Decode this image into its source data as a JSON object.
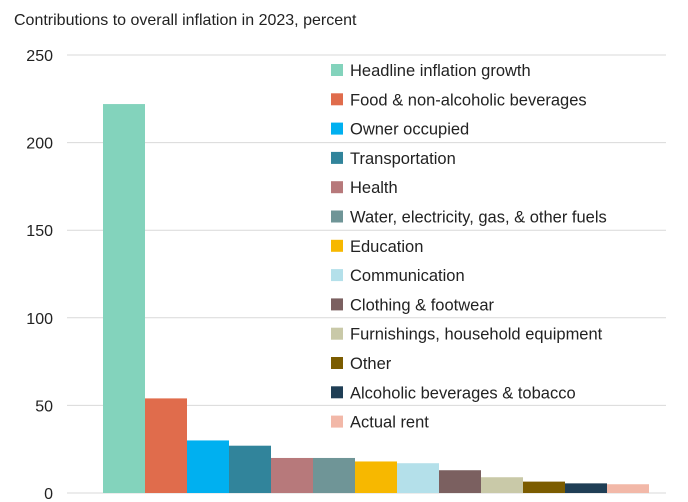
{
  "chart_data": {
    "type": "bar",
    "title": "Contributions to overall inflation in 2023, percent",
    "xlabel": "",
    "ylabel": "",
    "ylim": [
      0,
      250
    ],
    "yticks": [
      0,
      50,
      100,
      150,
      200,
      250
    ],
    "grid": true,
    "legend": "top-right",
    "series": [
      {
        "name": "Headline inflation growth",
        "value": 222,
        "color": "#83d3bc"
      },
      {
        "name": "Food & non-alcoholic beverages",
        "value": 54,
        "color": "#e06c4c"
      },
      {
        "name": "Owner occupied",
        "value": 30,
        "color": "#00b0f0"
      },
      {
        "name": "Transportation",
        "value": 27,
        "color": "#31849b"
      },
      {
        "name": "Health",
        "value": 20,
        "color": "#b7797b"
      },
      {
        "name": "Water, electricity, gas, & other fuels",
        "value": 20,
        "color": "#6f9597"
      },
      {
        "name": "Education",
        "value": 18,
        "color": "#f7b800"
      },
      {
        "name": "Communication",
        "value": 17,
        "color": "#b4e0ea"
      },
      {
        "name": "Clothing & footwear",
        "value": 13,
        "color": "#7b6060"
      },
      {
        "name": "Furnishings, household equipment",
        "value": 9,
        "color": "#c9c9a8"
      },
      {
        "name": "Other",
        "value": 6.5,
        "color": "#7b5c00"
      },
      {
        "name": "Alcoholic beverages & tobacco",
        "value": 5.5,
        "color": "#1f3e55"
      },
      {
        "name": "Actual rent",
        "value": 5,
        "color": "#f2b8a8"
      }
    ]
  }
}
